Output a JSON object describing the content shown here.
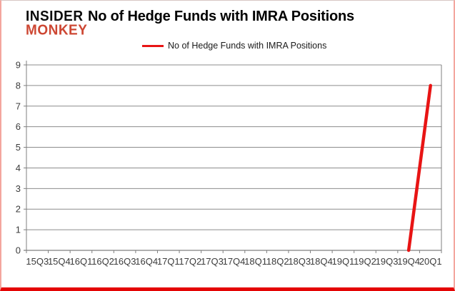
{
  "logo": {
    "line1": "INSIDER",
    "line2": "MONKEY"
  },
  "header": {
    "title": "No of Hedge Funds with IMRA Positions"
  },
  "legend": {
    "label": "No of Hedge Funds with IMRA Positions",
    "line_color": "#e81414"
  },
  "chart_data": {
    "type": "line",
    "title": "No of Hedge Funds with IMRA Positions",
    "categories": [
      "15Q3",
      "15Q4",
      "16Q1",
      "16Q2",
      "16Q3",
      "16Q4",
      "17Q1",
      "17Q2",
      "17Q3",
      "17Q4",
      "18Q1",
      "18Q2",
      "18Q3",
      "18Q4",
      "19Q1",
      "19Q2",
      "19Q3",
      "19Q4",
      "20Q1"
    ],
    "series": [
      {
        "name": "No of Hedge Funds with IMRA Positions",
        "values": [
          null,
          null,
          null,
          null,
          null,
          null,
          null,
          null,
          null,
          null,
          null,
          null,
          null,
          null,
          null,
          null,
          null,
          0,
          8
        ]
      }
    ],
    "xlabel": "",
    "ylabel": "",
    "ylim": [
      0,
      9
    ],
    "yticks": [
      0,
      1,
      2,
      3,
      4,
      5,
      6,
      7,
      8,
      9
    ],
    "grid": true,
    "legend_position": "top",
    "line_color": "#e81414",
    "gridline_color": "#8c8c8c",
    "axis_color": "#7f7f7f",
    "tick_label_color": "#3c3c3c"
  },
  "colors": {
    "logo_line1": "#0b0b0b",
    "logo_line2": "#cd4733",
    "frame_side_border": "#f4a69e",
    "frame_bottom_border": "#e40505"
  }
}
